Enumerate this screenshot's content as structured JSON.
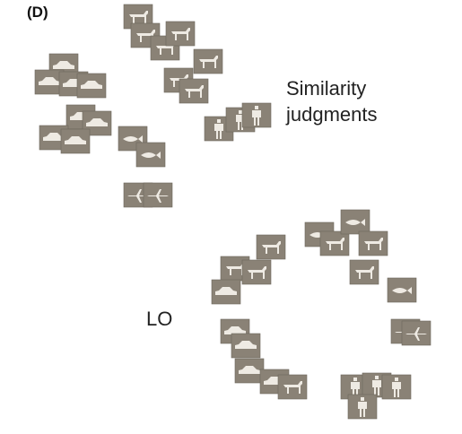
{
  "panel_label": "(D)",
  "plots": [
    {
      "title": "Similarity\njudgments"
    },
    {
      "title": "LO"
    }
  ],
  "colors": {
    "thumbnail_bg": "#8a8276",
    "silhouette": "#eeeae3"
  },
  "thumbnail_categories": [
    "quadruped",
    "car",
    "fish",
    "plane",
    "human"
  ]
}
